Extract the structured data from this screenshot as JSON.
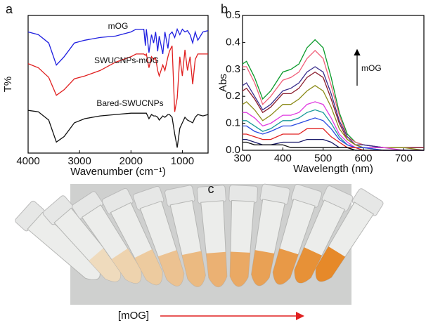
{
  "chart_data": [
    {
      "type": "line",
      "panel_label": "a",
      "xlabel": "Wavenumber (cm⁻¹)",
      "ylabel": "T%",
      "x": [
        4000,
        3800,
        3600,
        3450,
        3300,
        3100,
        2900,
        2600,
        2300,
        2000,
        1900,
        1750,
        1720,
        1700,
        1650,
        1600,
        1560,
        1520,
        1480,
        1450,
        1380,
        1340,
        1280,
        1250,
        1200,
        1150,
        1100,
        1050,
        1000,
        950,
        900,
        850,
        800,
        750,
        700,
        600,
        500
      ],
      "xlim": [
        4000,
        500
      ],
      "xticks": [
        4000,
        3000,
        2000,
        1000
      ],
      "ylim": [
        0,
        100
      ],
      "series": [
        {
          "name": "mOG",
          "color": "#1f1fe0",
          "values": [
            88,
            86,
            80,
            64,
            70,
            80,
            82,
            84,
            85,
            88,
            90,
            90,
            78,
            90,
            73,
            86,
            80,
            88,
            74,
            85,
            72,
            88,
            76,
            86,
            88,
            84,
            90,
            86,
            90,
            88,
            89,
            86,
            80,
            88,
            82,
            88,
            89
          ]
        },
        {
          "name": "SWUCNPs-mOG",
          "color": "#e01f1f",
          "values": [
            65,
            62,
            55,
            42,
            46,
            54,
            56,
            60,
            66,
            70,
            72,
            72,
            71,
            72,
            62,
            70,
            68,
            69,
            60,
            56,
            64,
            60,
            70,
            74,
            78,
            30,
            40,
            70,
            56,
            75,
            60,
            70,
            50,
            68,
            72,
            72,
            72
          ]
        },
        {
          "name": "Bared-SWUCNPs",
          "color": "#111111",
          "values": [
            31,
            30,
            24,
            8,
            12,
            22,
            25,
            27,
            28,
            29,
            29,
            29,
            29,
            29,
            25,
            28,
            27,
            27,
            26,
            24,
            27,
            26,
            28,
            28,
            26,
            14,
            4,
            18,
            22,
            26,
            24,
            23,
            22,
            26,
            28,
            27,
            28
          ]
        }
      ]
    },
    {
      "type": "line",
      "panel_label": "b",
      "xlabel": "Wavelength (nm)",
      "ylabel": "Abs",
      "annotation": "mOG",
      "x": [
        300,
        310,
        330,
        350,
        370,
        400,
        420,
        440,
        460,
        480,
        500,
        520,
        540,
        560,
        580,
        600,
        650,
        700,
        750
      ],
      "xlim": [
        300,
        750
      ],
      "xticks": [
        300,
        400,
        500,
        600,
        700
      ],
      "ylim": [
        0,
        0.5
      ],
      "yticks": [
        {
          "value": 0,
          "label": "0.0"
        },
        0.1,
        0.2,
        0.3,
        0.4,
        0.5
      ],
      "series": [
        {
          "color": "#0a9a2a",
          "values": [
            0.32,
            0.33,
            0.27,
            0.19,
            0.22,
            0.29,
            0.3,
            0.32,
            0.38,
            0.41,
            0.38,
            0.27,
            0.14,
            0.06,
            0.03,
            0.02,
            0.01,
            0.01,
            0.01
          ]
        },
        {
          "color": "#f0607a",
          "values": [
            0.31,
            0.31,
            0.25,
            0.17,
            0.2,
            0.26,
            0.27,
            0.29,
            0.34,
            0.37,
            0.34,
            0.24,
            0.13,
            0.05,
            0.03,
            0.02,
            0.01,
            0.01,
            0.01
          ]
        },
        {
          "color": "#3a2e8c",
          "values": [
            0.24,
            0.25,
            0.2,
            0.15,
            0.17,
            0.22,
            0.23,
            0.25,
            0.29,
            0.31,
            0.29,
            0.21,
            0.11,
            0.05,
            0.02,
            0.02,
            0.01,
            0.01,
            0.01
          ]
        },
        {
          "color": "#8a1c2c",
          "values": [
            0.22,
            0.23,
            0.19,
            0.14,
            0.16,
            0.21,
            0.21,
            0.23,
            0.27,
            0.29,
            0.27,
            0.19,
            0.1,
            0.04,
            0.02,
            0.01,
            0.01,
            0.01,
            0.01
          ]
        },
        {
          "color": "#8c8c1a",
          "values": [
            0.17,
            0.18,
            0.15,
            0.11,
            0.13,
            0.17,
            0.17,
            0.19,
            0.22,
            0.24,
            0.22,
            0.16,
            0.08,
            0.04,
            0.02,
            0.01,
            0.01,
            0.01,
            0.0
          ]
        },
        {
          "color": "#e03ae0",
          "values": [
            0.14,
            0.14,
            0.12,
            0.09,
            0.1,
            0.13,
            0.13,
            0.14,
            0.17,
            0.18,
            0.17,
            0.12,
            0.06,
            0.03,
            0.01,
            0.01,
            0.01,
            0.0,
            0.0
          ]
        },
        {
          "color": "#1a9a9a",
          "values": [
            0.11,
            0.11,
            0.09,
            0.07,
            0.08,
            0.11,
            0.11,
            0.12,
            0.14,
            0.15,
            0.14,
            0.1,
            0.05,
            0.02,
            0.01,
            0.01,
            0.0,
            0.0,
            0.0
          ]
        },
        {
          "color": "#2a4ae0",
          "values": [
            0.09,
            0.09,
            0.07,
            0.06,
            0.07,
            0.09,
            0.09,
            0.1,
            0.11,
            0.12,
            0.11,
            0.08,
            0.04,
            0.02,
            0.01,
            0.01,
            0.0,
            0.0,
            0.0
          ]
        },
        {
          "color": "#e02020",
          "values": [
            0.06,
            0.06,
            0.05,
            0.04,
            0.04,
            0.06,
            0.06,
            0.06,
            0.08,
            0.08,
            0.08,
            0.05,
            0.03,
            0.01,
            0.01,
            0.0,
            0.0,
            0.0,
            0.0
          ]
        },
        {
          "color": "#1a1a6a",
          "values": [
            0.04,
            0.04,
            0.03,
            0.02,
            0.02,
            0.03,
            0.03,
            0.03,
            0.04,
            0.04,
            0.04,
            0.03,
            0.01,
            0.01,
            0.0,
            0.0,
            0.0,
            0.0,
            0.0
          ]
        },
        {
          "color": "#111111",
          "values": [
            0.03,
            0.03,
            0.02,
            0.02,
            0.02,
            0.02,
            0.01,
            0.01,
            0.01,
            0.01,
            0.01,
            0.01,
            0.01,
            0.01,
            0.0,
            0.0,
            0.0,
            0.0,
            0.0
          ]
        }
      ]
    }
  ],
  "photo": {
    "label": "c",
    "caption": "[mOG]"
  }
}
